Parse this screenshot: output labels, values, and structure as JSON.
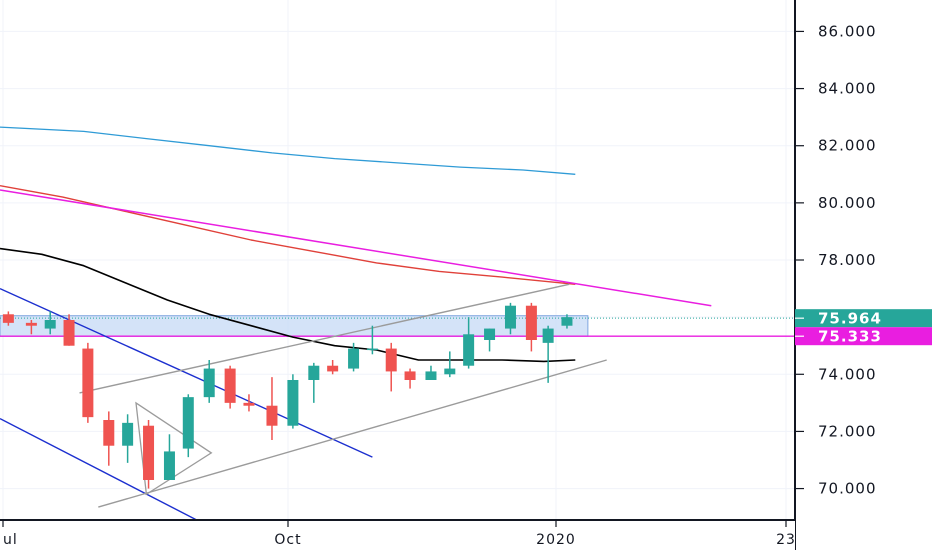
{
  "chart_data": {
    "type": "candlestick",
    "y_axis": {
      "ticks": [
        "86.000",
        "84.000",
        "82.000",
        "80.000",
        "78.000",
        "74.000",
        "72.000",
        "70.000"
      ],
      "tick_values": [
        86,
        84,
        82,
        80,
        78,
        74,
        72,
        70
      ],
      "range": [
        68.9,
        87.1
      ],
      "side": "right"
    },
    "x_axis": {
      "ticks": [
        "ul",
        "Oct",
        "2020",
        "23"
      ],
      "range": [
        -1,
        37
      ]
    },
    "price_tags": [
      {
        "label": "75.964",
        "value": 75.964,
        "color": "#26a69a"
      },
      {
        "label": "75.333",
        "value": 75.333,
        "color": "#e91ee0"
      }
    ],
    "colors": {
      "up": "#26a69a",
      "down": "#ef5350",
      "zone": "#c6d9f5",
      "zone_border": "#7fa6e0"
    },
    "candles": [
      {
        "x": -0.6,
        "o": 76.1,
        "h": 76.2,
        "l": 75.7,
        "c": 75.8
      },
      {
        "x": 0.5,
        "o": 75.8,
        "h": 75.9,
        "l": 75.4,
        "c": 75.7
      },
      {
        "x": 1.4,
        "o": 75.6,
        "h": 76.2,
        "l": 75.4,
        "c": 75.9
      },
      {
        "x": 2.3,
        "o": 75.9,
        "h": 76.1,
        "l": 75.0,
        "c": 75.0
      },
      {
        "x": 3.2,
        "o": 74.9,
        "h": 75.1,
        "l": 72.3,
        "c": 72.5
      },
      {
        "x": 4.2,
        "o": 72.4,
        "h": 72.7,
        "l": 70.8,
        "c": 71.5
      },
      {
        "x": 5.1,
        "o": 71.5,
        "h": 72.6,
        "l": 70.9,
        "c": 72.3
      },
      {
        "x": 6.1,
        "o": 72.2,
        "h": 72.4,
        "l": 70.0,
        "c": 70.3
      },
      {
        "x": 7.1,
        "o": 70.3,
        "h": 71.9,
        "l": 70.3,
        "c": 71.3
      },
      {
        "x": 8.0,
        "o": 71.4,
        "h": 73.3,
        "l": 71.1,
        "c": 73.2
      },
      {
        "x": 9.0,
        "o": 73.2,
        "h": 74.5,
        "l": 73.0,
        "c": 74.2
      },
      {
        "x": 10.0,
        "o": 74.2,
        "h": 74.3,
        "l": 72.8,
        "c": 73.0
      },
      {
        "x": 10.9,
        "o": 73.0,
        "h": 73.3,
        "l": 72.7,
        "c": 72.9
      },
      {
        "x": 12.0,
        "o": 72.9,
        "h": 73.9,
        "l": 71.7,
        "c": 72.2
      },
      {
        "x": 13.0,
        "o": 72.2,
        "h": 74.0,
        "l": 72.1,
        "c": 73.8
      },
      {
        "x": 14.0,
        "o": 73.8,
        "h": 74.4,
        "l": 73.0,
        "c": 74.3
      },
      {
        "x": 14.9,
        "o": 74.3,
        "h": 74.5,
        "l": 74.0,
        "c": 74.1
      },
      {
        "x": 15.9,
        "o": 74.2,
        "h": 75.1,
        "l": 74.1,
        "c": 74.9
      },
      {
        "x": 16.8,
        "o": 74.9,
        "h": 75.7,
        "l": 74.7,
        "c": 74.9
      },
      {
        "x": 17.7,
        "o": 74.9,
        "h": 75.1,
        "l": 73.4,
        "c": 74.1
      },
      {
        "x": 18.6,
        "o": 74.1,
        "h": 74.2,
        "l": 73.5,
        "c": 73.8
      },
      {
        "x": 19.6,
        "o": 73.8,
        "h": 74.3,
        "l": 73.8,
        "c": 74.1
      },
      {
        "x": 20.5,
        "o": 74.0,
        "h": 74.8,
        "l": 73.9,
        "c": 74.2
      },
      {
        "x": 21.4,
        "o": 74.3,
        "h": 76.0,
        "l": 74.2,
        "c": 75.4
      },
      {
        "x": 22.4,
        "o": 75.2,
        "h": 75.6,
        "l": 74.8,
        "c": 75.6
      },
      {
        "x": 23.4,
        "o": 75.6,
        "h": 76.5,
        "l": 75.4,
        "c": 76.4
      },
      {
        "x": 24.4,
        "o": 76.4,
        "h": 76.5,
        "l": 74.8,
        "c": 75.2
      },
      {
        "x": 25.2,
        "o": 75.1,
        "h": 75.7,
        "l": 73.7,
        "c": 75.6
      },
      {
        "x": 26.1,
        "o": 75.7,
        "h": 76.1,
        "l": 75.6,
        "c": 76.0
      }
    ],
    "lines": [
      {
        "name": "",
        "color": "#2f9bd6",
        "width": 1.3,
        "points": [
          [
            -1,
            82.65
          ],
          [
            3,
            82.5
          ],
          [
            6,
            82.25
          ],
          [
            9,
            82.0
          ],
          [
            12,
            81.75
          ],
          [
            15,
            81.55
          ],
          [
            18,
            81.4
          ],
          [
            21,
            81.25
          ],
          [
            24,
            81.15
          ],
          [
            26.5,
            81.0
          ]
        ]
      },
      {
        "name": "",
        "color": "#e0413a",
        "width": 1.4,
        "points": [
          [
            -1,
            80.6
          ],
          [
            2,
            80.2
          ],
          [
            5,
            79.7
          ],
          [
            8,
            79.2
          ],
          [
            11,
            78.7
          ],
          [
            14,
            78.3
          ],
          [
            17,
            77.9
          ],
          [
            20,
            77.6
          ],
          [
            23,
            77.4
          ],
          [
            26.5,
            77.15
          ]
        ]
      },
      {
        "name": "",
        "color": "#e91ee0",
        "width": 1.5,
        "points": [
          [
            -1,
            80.45
          ],
          [
            33,
            76.4
          ]
        ]
      },
      {
        "name": "",
        "color": "#000000",
        "width": 1.6,
        "points": [
          [
            -1,
            78.4
          ],
          [
            1,
            78.2
          ],
          [
            3,
            77.8
          ],
          [
            5,
            77.2
          ],
          [
            7,
            76.6
          ],
          [
            9,
            76.1
          ],
          [
            11,
            75.7
          ],
          [
            13,
            75.3
          ],
          [
            15,
            75.0
          ],
          [
            17,
            74.85
          ],
          [
            19,
            74.5
          ],
          [
            21,
            74.5
          ],
          [
            23,
            74.5
          ],
          [
            25,
            74.45
          ],
          [
            26.5,
            74.5
          ]
        ]
      },
      {
        "name": "",
        "color": "#1c2fcf",
        "width": 1.4,
        "points": [
          [
            -1,
            77.0
          ],
          [
            16.8,
            71.1
          ]
        ]
      },
      {
        "name": "",
        "color": "#1c2fcf",
        "width": 1.4,
        "points": [
          [
            -1,
            72.45
          ],
          [
            8.4,
            68.9
          ]
        ]
      },
      {
        "name": "",
        "color": "#9b9b9b",
        "width": 1.4,
        "points": [
          [
            2.8,
            73.35
          ],
          [
            26.2,
            77.15
          ]
        ]
      },
      {
        "name": "",
        "color": "#9b9b9b",
        "width": 1.4,
        "points": [
          [
            3.7,
            69.35
          ],
          [
            28.0,
            74.5
          ]
        ]
      }
    ],
    "triangle": {
      "color": "#9b9b9b",
      "points": [
        [
          5.5,
          73.0
        ],
        [
          9.1,
          71.25
        ],
        [
          6.0,
          69.8
        ]
      ]
    },
    "zone": {
      "x_start": -1,
      "x_end": 27.1,
      "y_low": 75.333,
      "y_high": 76.05
    },
    "horizontal_lines": [
      {
        "value": 75.333,
        "color": "#e91ee0",
        "style": "solid"
      },
      {
        "value": 75.964,
        "color": "#26a69a",
        "style": "dotted"
      }
    ],
    "grid": true
  }
}
